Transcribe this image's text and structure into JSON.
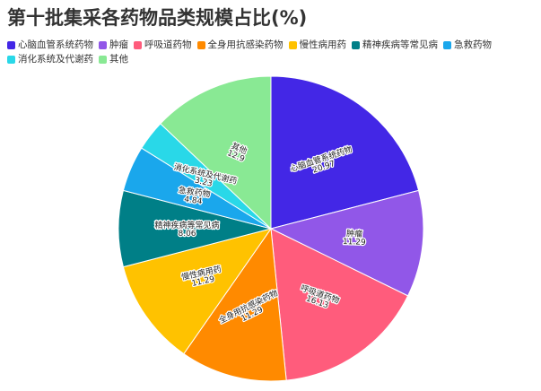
{
  "chart_data": {
    "type": "pie",
    "title": "第十批集采各药物品类规模占比(%)",
    "categories": [
      "心脑血管系统药物",
      "肿瘤",
      "呼吸道药物",
      "全身用抗感染药物",
      "慢性病用药",
      "精神疾病等常见病",
      "急救药物",
      "消化系统及代谢药",
      "其他"
    ],
    "values": [
      20.97,
      11.29,
      16.13,
      11.29,
      11.29,
      8.06,
      4.84,
      3.23,
      12.9
    ],
    "value_labels": [
      "20.97",
      "11.29",
      "16.13",
      "11.29",
      "11.29",
      "8.06",
      "4.84",
      "3.23",
      "12.9"
    ],
    "colors": [
      "#4327E6",
      "#9157E8",
      "#FF5C7C",
      "#FF8A00",
      "#FFC200",
      "#007F87",
      "#1AA7EC",
      "#29D8E8",
      "#89E994"
    ],
    "legend_position": "top-left",
    "start_angle_deg": 0,
    "direction": "clockwise"
  }
}
